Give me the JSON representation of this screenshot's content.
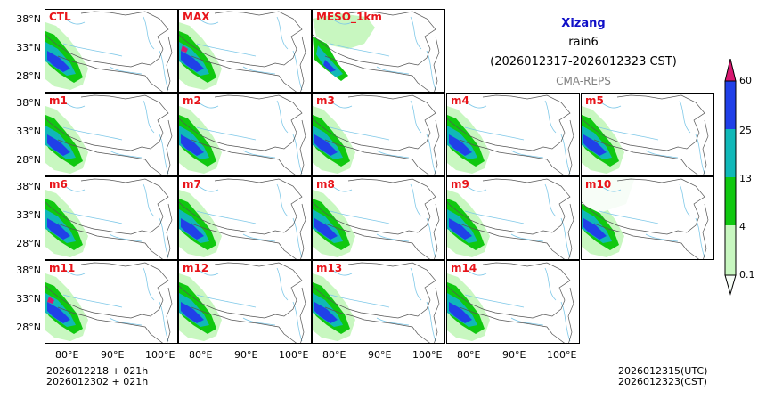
{
  "header": {
    "region": "Xizang",
    "variable": "rain6",
    "period": "(2026012317-2026012323 CST)",
    "system": "CMA-REPS"
  },
  "panels": [
    {
      "label": "CTL"
    },
    {
      "label": "MAX"
    },
    {
      "label": "MESO_1km"
    },
    {
      "label": "m1"
    },
    {
      "label": "m2"
    },
    {
      "label": "m3"
    },
    {
      "label": "m4"
    },
    {
      "label": "m5"
    },
    {
      "label": "m6"
    },
    {
      "label": "m7"
    },
    {
      "label": "m8"
    },
    {
      "label": "m9"
    },
    {
      "label": "m10"
    },
    {
      "label": "m11"
    },
    {
      "label": "m12"
    },
    {
      "label": "m13"
    },
    {
      "label": "m14"
    }
  ],
  "axes": {
    "lat_ticks": [
      "38°N",
      "33°N",
      "28°N"
    ],
    "lon_ticks": [
      "80°E",
      "90°E",
      "100°E"
    ]
  },
  "colorbar": {
    "levels": [
      "0.1",
      "4",
      "13",
      "25",
      "60"
    ],
    "colors": [
      "#f7fdf7",
      "#c8f7c0",
      "#10c810",
      "#10b8b8",
      "#2040e8",
      "#d81870"
    ]
  },
  "footer": {
    "init_line1": "2026012218  +  021h",
    "init_line2": "2026012302  +  021h",
    "valid_utc": "2026012315(UTC)",
    "valid_cst": "2026012323(CST)"
  }
}
